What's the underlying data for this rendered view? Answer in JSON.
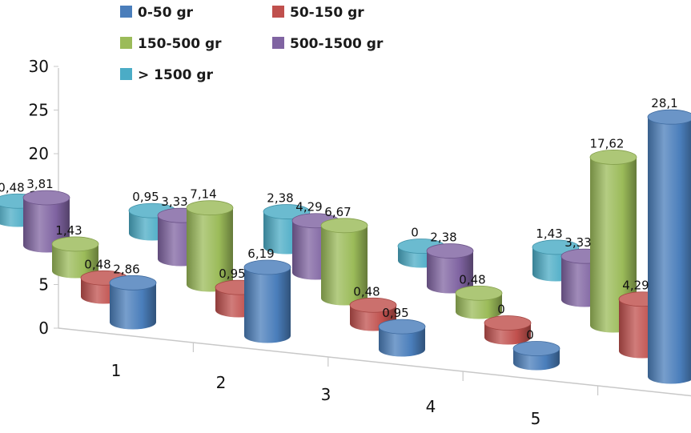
{
  "chart_data": {
    "type": "bar",
    "subtype": "3d-cylinder",
    "title": "",
    "xlabel": "",
    "ylabel": "",
    "ylim": [
      0,
      30
    ],
    "y_ticks": [
      "0",
      "5",
      "10",
      "15",
      "20",
      "25",
      "30"
    ],
    "categories": [
      "1",
      "2",
      "3",
      "4",
      "5"
    ],
    "legend_position": "top-left",
    "grid": false,
    "series": [
      {
        "name": "0-50 gr",
        "color": "#4a7ebb",
        "values": [
          2.86,
          6.19,
          0.95,
          0,
          28.1
        ],
        "labels": [
          "2,86",
          "6,19",
          "0,95",
          "0",
          "28,1"
        ]
      },
      {
        "name": "50-150 gr",
        "color": "#c0504d",
        "values": [
          0.48,
          0.95,
          0.48,
          0,
          4.29
        ],
        "labels": [
          "0,48",
          "0,95",
          "0,48",
          "0",
          "4,29"
        ]
      },
      {
        "name": "150-500 gr",
        "color": "#9bbb59",
        "values": [
          1.43,
          7.14,
          6.67,
          0.48,
          17.62
        ],
        "labels": [
          "1,43",
          "7,14",
          "6,67",
          "0,48",
          "17,62"
        ]
      },
      {
        "name": "500-1500 gr",
        "color": "#8064a2",
        "values": [
          3.81,
          3.33,
          4.29,
          2.38,
          3.33
        ],
        "labels": [
          "3,81",
          "3,33",
          "4,29",
          "2,38",
          "3,33"
        ]
      },
      {
        "name": "> 1500 gr",
        "color": "#4bacc6",
        "values": [
          0.48,
          0.95,
          2.38,
          0,
          1.43
        ],
        "labels": [
          "0,48",
          "0,95",
          "2,38",
          "0",
          "1,43"
        ]
      }
    ]
  }
}
